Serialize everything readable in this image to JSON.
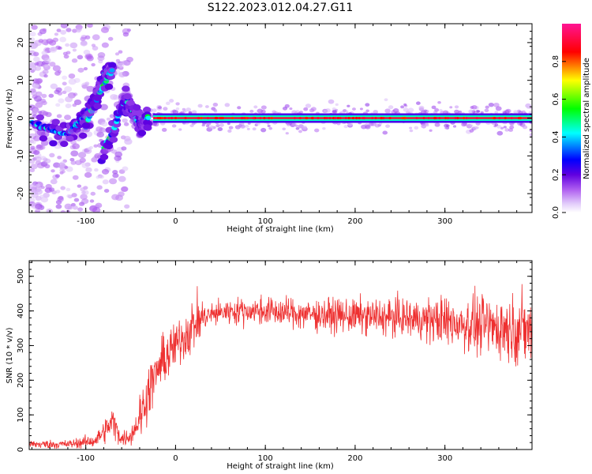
{
  "title": "S122.2023.012.04.27.G11",
  "colors": {
    "snr_line": "#ee3030",
    "axis": "#000000",
    "background": "#ffffff",
    "colormap": [
      "#ffffff",
      "#cf9bf4",
      "#9b4df0",
      "#5a00e6",
      "#0000ff",
      "#00ffff",
      "#00ff00",
      "#ffff00",
      "#ff0000",
      "#ff2080"
    ]
  },
  "chart_data": [
    {
      "type": "heatmap",
      "title": "",
      "xlabel": "Height of straight line (km)",
      "ylabel": "Frequency (Hz)",
      "xlim": [
        -163,
        397
      ],
      "ylim": [
        -25,
        25
      ],
      "xticks": [
        -100,
        0,
        100,
        200,
        300
      ],
      "yticks": [
        -20,
        -10,
        0,
        10,
        20
      ],
      "xtick_labels": [
        "-100",
        "0",
        "100",
        "200",
        "300"
      ],
      "ytick_labels": [
        "-20",
        "-10",
        "0",
        "10",
        "20"
      ],
      "colorbar": {
        "label": "Normalized spectral amplitude",
        "range": [
          0.0,
          1.0
        ],
        "ticks": [
          0.0,
          0.2,
          0.4,
          0.6,
          0.8
        ],
        "tick_labels": [
          "0.0",
          "0.2",
          "0.4",
          "0.6",
          "0.8"
        ]
      },
      "features": [
        {
          "name": "carrier",
          "x_range": [
            -25,
            397
          ],
          "frequency": 0.0,
          "amplitude": 0.9
        },
        {
          "name": "central-trace",
          "points": [
            [
              -160,
              -1
            ],
            [
              -140,
              -3
            ],
            [
              -120,
              -4
            ],
            [
              -110,
              -2
            ],
            [
              -100,
              1
            ],
            [
              -90,
              5
            ],
            [
              -80,
              11
            ],
            [
              -70,
              14
            ]
          ],
          "amplitude": 0.4
        },
        {
          "name": "upper-branch",
          "points": [
            [
              -100,
              -2
            ],
            [
              -90,
              4
            ],
            [
              -80,
              9
            ],
            [
              -70,
              13
            ]
          ],
          "amplitude": 0.5
        },
        {
          "name": "lower-branch",
          "points": [
            [
              -80,
              -8
            ],
            [
              -70,
              -4
            ],
            [
              -60,
              3
            ],
            [
              -55,
              5
            ],
            [
              -50,
              3
            ],
            [
              -45,
              0
            ],
            [
              -40,
              -2
            ],
            [
              -35,
              0
            ],
            [
              -30,
              0
            ]
          ],
          "amplitude": 0.5
        }
      ]
    },
    {
      "type": "line",
      "title": "",
      "xlabel": "Height of straight line (km)",
      "ylabel": "SNR (10 * v/v)",
      "xlim": [
        -163,
        397
      ],
      "ylim": [
        0,
        545
      ],
      "xticks": [
        -100,
        0,
        100,
        200,
        300
      ],
      "yticks": [
        0,
        100,
        200,
        300,
        400,
        500
      ],
      "xtick_labels": [
        "-100",
        "0",
        "100",
        "200",
        "300"
      ],
      "ytick_labels": [
        "0",
        "100",
        "200",
        "300",
        "400",
        "500"
      ],
      "series_profile": {
        "x": [
          -163,
          -120,
          -90,
          -80,
          -70,
          -60,
          -50,
          -40,
          -30,
          -20,
          -10,
          0,
          10,
          20,
          30,
          40,
          60,
          100,
          150,
          200,
          250,
          300,
          350,
          397
        ],
        "y": [
          15,
          15,
          25,
          50,
          80,
          30,
          40,
          90,
          170,
          230,
          270,
          300,
          330,
          360,
          380,
          390,
          400,
          400,
          390,
          385,
          380,
          370,
          355,
          345
        ]
      }
    }
  ]
}
